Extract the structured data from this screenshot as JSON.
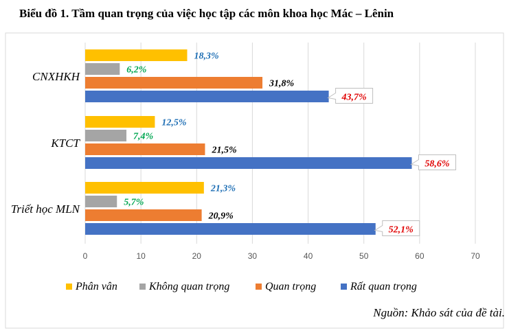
{
  "title": "Biểu đồ 1. Tầm quan trọng của việc học tập các môn khoa học Mác – Lênin",
  "source": "Nguồn: Khảo sát của đề tài.",
  "chart_data": {
    "type": "bar",
    "orientation": "horizontal",
    "categories": [
      "CNXHKH",
      "KTCT",
      "Triết học MLN"
    ],
    "series": [
      {
        "name": "Phân vân",
        "color": "#FFC000",
        "label_color": "#1F6FB5",
        "values": [
          18.3,
          12.5,
          21.3
        ],
        "labels": [
          "18,3%",
          "12,5%",
          "21,3%"
        ]
      },
      {
        "name": "Không quan trọng",
        "color": "#A5A5A5",
        "label_color": "#00A651",
        "values": [
          6.2,
          7.4,
          5.7
        ],
        "labels": [
          "6,2%",
          "7,4%",
          "5,7%"
        ]
      },
      {
        "name": "Quan trọng",
        "color": "#ED7D31",
        "label_color": "#000000",
        "values": [
          31.8,
          21.5,
          20.9
        ],
        "labels": [
          "31,8%",
          "21,5%",
          "20,9%"
        ]
      },
      {
        "name": "Rất quan trọng",
        "color": "#4472C4",
        "label_color": "#E00000",
        "values": [
          43.7,
          58.6,
          52.1
        ],
        "labels": [
          "43,7%",
          "58,6%",
          "52,1%"
        ],
        "callout": true
      }
    ],
    "xlim": [
      0,
      70
    ],
    "xticks": [
      0,
      10,
      20,
      30,
      40,
      50,
      60,
      70
    ],
    "grid": true,
    "legend": "bottom"
  }
}
